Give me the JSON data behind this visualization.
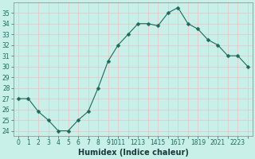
{
  "x": [
    0,
    1,
    2,
    3,
    4,
    5,
    6,
    7,
    8,
    9,
    10,
    11,
    12,
    13,
    14,
    15,
    16,
    17,
    18,
    19,
    20,
    21,
    22,
    23
  ],
  "y": [
    27.0,
    27.0,
    25.8,
    25.0,
    24.0,
    24.0,
    25.0,
    25.8,
    28.0,
    30.5,
    32.0,
    33.0,
    34.0,
    34.0,
    33.8,
    35.0,
    35.5,
    34.0,
    33.5,
    32.5,
    32.0,
    31.0,
    31.0,
    30.0
  ],
  "line_color": "#1a6b5a",
  "marker": "D",
  "marker_size": 2.5,
  "bg_color": "#c8f0e8",
  "grid_color": "#e8c8c8",
  "xlabel": "Humidex (Indice chaleur)",
  "ylim": [
    23.5,
    36.0
  ],
  "xlim": [
    -0.5,
    23.5
  ],
  "yticks": [
    24,
    25,
    26,
    27,
    28,
    29,
    30,
    31,
    32,
    33,
    34,
    35
  ],
  "label_fontsize": 7,
  "tick_fontsize": 5.5
}
